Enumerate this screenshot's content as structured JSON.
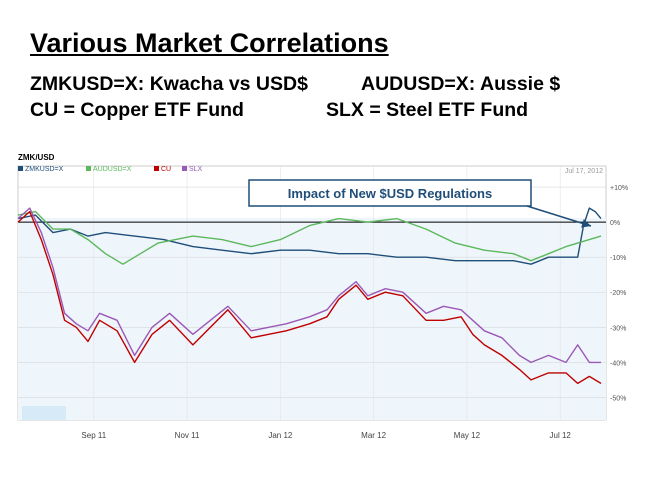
{
  "slide": {
    "title": "Various Market Correlations",
    "line1_left": "ZMKUSD=X: Kwacha vs USD$",
    "line1_right": "AUDUSD=X: Aussie $",
    "line2_left": "CU = Copper ETF Fund",
    "line2_right": "SLX = Steel ETF Fund"
  },
  "chart_data": {
    "type": "line",
    "title": "ZMK/USD",
    "date_label": "Jul 17, 2012",
    "annotation": "Impact of New $USD Regulations",
    "x_tick_labels": [
      "Sep 11",
      "Nov 11",
      "Jan 12",
      "Mar 12",
      "May 12",
      "Jul 12"
    ],
    "y_tick_labels": [
      "+10%",
      "0%",
      "-10%",
      "-20%",
      "-30%",
      "-40%",
      "-50%"
    ],
    "y_ticks": [
      10,
      0,
      -10,
      -20,
      -30,
      -40,
      -50
    ],
    "ylim": [
      -53,
      12
    ],
    "xlim": [
      0,
      100
    ],
    "grid": true,
    "legend_position": "top-left",
    "colors": {
      "ZMKUSD": "#1f4e79",
      "AUDUSD": "#5cb85c",
      "CU": "#c00000",
      "SLX": "#9b59b6"
    },
    "series": [
      {
        "name": "ZMKUSD=X",
        "key": "ZMKUSD",
        "x": [
          0,
          3,
          6,
          9,
          12,
          15,
          20,
          25,
          30,
          35,
          40,
          45,
          50,
          55,
          60,
          65,
          70,
          75,
          80,
          85,
          88,
          91,
          94,
          96,
          97,
          98,
          99,
          100
        ],
        "values": [
          1,
          2,
          -3,
          -2,
          -4,
          -3,
          -4,
          -5,
          -7,
          -8,
          -9,
          -8,
          -8,
          -9,
          -9,
          -10,
          -10,
          -11,
          -11,
          -11,
          -12,
          -10,
          -10,
          -10,
          -1,
          4,
          3,
          1
        ]
      },
      {
        "name": "AUDUSD=X",
        "key": "AUDUSD",
        "x": [
          0,
          3,
          6,
          9,
          12,
          15,
          18,
          21,
          24,
          27,
          30,
          35,
          40,
          45,
          50,
          55,
          60,
          65,
          70,
          75,
          80,
          85,
          88,
          91,
          94,
          96,
          98,
          100
        ],
        "values": [
          2,
          3,
          -2,
          -2,
          -5,
          -9,
          -12,
          -9,
          -6,
          -5,
          -4,
          -5,
          -7,
          -5,
          -1,
          1,
          0,
          1,
          -2,
          -6,
          -8,
          -9,
          -11,
          -9,
          -7,
          -6,
          -5,
          -4
        ]
      },
      {
        "name": "CU",
        "key": "CU",
        "x": [
          0,
          2,
          4,
          6,
          8,
          10,
          12,
          14,
          17,
          20,
          23,
          26,
          30,
          33,
          36,
          40,
          43,
          46,
          50,
          53,
          55,
          58,
          60,
          63,
          66,
          70,
          73,
          76,
          78,
          80,
          83,
          86,
          88,
          91,
          94,
          96,
          98,
          100
        ],
        "values": [
          0,
          3,
          -5,
          -15,
          -28,
          -30,
          -34,
          -28,
          -31,
          -40,
          -32,
          -28,
          -35,
          -30,
          -25,
          -33,
          -32,
          -31,
          -29,
          -27,
          -22,
          -18,
          -22,
          -20,
          -21,
          -28,
          -28,
          -27,
          -32,
          -35,
          -38,
          -42,
          -45,
          -43,
          -43,
          -46,
          -44,
          -46
        ]
      },
      {
        "name": "SLX",
        "key": "SLX",
        "x": [
          0,
          2,
          4,
          6,
          8,
          10,
          12,
          14,
          17,
          20,
          23,
          26,
          30,
          33,
          36,
          40,
          43,
          46,
          50,
          53,
          55,
          58,
          60,
          63,
          66,
          70,
          73,
          76,
          78,
          80,
          83,
          86,
          88,
          91,
          94,
          96,
          98,
          100
        ],
        "values": [
          1,
          4,
          -3,
          -13,
          -26,
          -29,
          -31,
          -26,
          -28,
          -38,
          -30,
          -26,
          -32,
          -28,
          -24,
          -31,
          -30,
          -29,
          -27,
          -25,
          -21,
          -17,
          -21,
          -19,
          -20,
          -26,
          -24,
          -25,
          -28,
          -31,
          -33,
          -38,
          -40,
          -38,
          -40,
          -35,
          -40,
          -40
        ]
      }
    ]
  }
}
